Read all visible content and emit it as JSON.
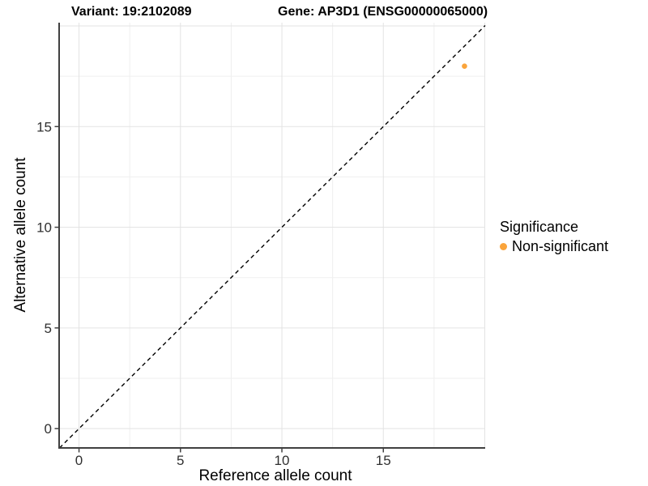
{
  "chart_data": {
    "type": "scatter",
    "titles": {
      "left": "Variant: 19:2102089",
      "right": "Gene: AP3D1 (ENSG00000065000)"
    },
    "xlabel": "Reference allele count",
    "ylabel": "Alternative allele count",
    "xlim": [
      -0.98,
      20.02
    ],
    "ylim": [
      -0.96,
      20.16
    ],
    "xticks": [
      0,
      5,
      10,
      15
    ],
    "yticks": [
      0,
      5,
      10,
      15
    ],
    "grid": {
      "major": [
        0,
        5,
        10,
        15,
        20
      ],
      "minor": [
        2.5,
        7.5,
        12.5,
        17.5
      ],
      "on": true
    },
    "identity_line": {
      "slope": 1,
      "intercept": 0,
      "style": "dashed",
      "color": "#000000"
    },
    "series": [
      {
        "name": "Non-significant",
        "color": "#FAA43B",
        "points": [
          {
            "x": 19,
            "y": 18
          }
        ]
      }
    ],
    "legend": {
      "title": "Significance",
      "position": "right",
      "entries": [
        {
          "label": "Non-significant",
          "color": "#FAA43B"
        }
      ]
    },
    "colors": {
      "axis_line": "#404040",
      "tick_text": "#303030",
      "grid_major": "#E3E3E3",
      "grid_minor": "#EFEFEF",
      "background": "#FFFFFF"
    }
  }
}
